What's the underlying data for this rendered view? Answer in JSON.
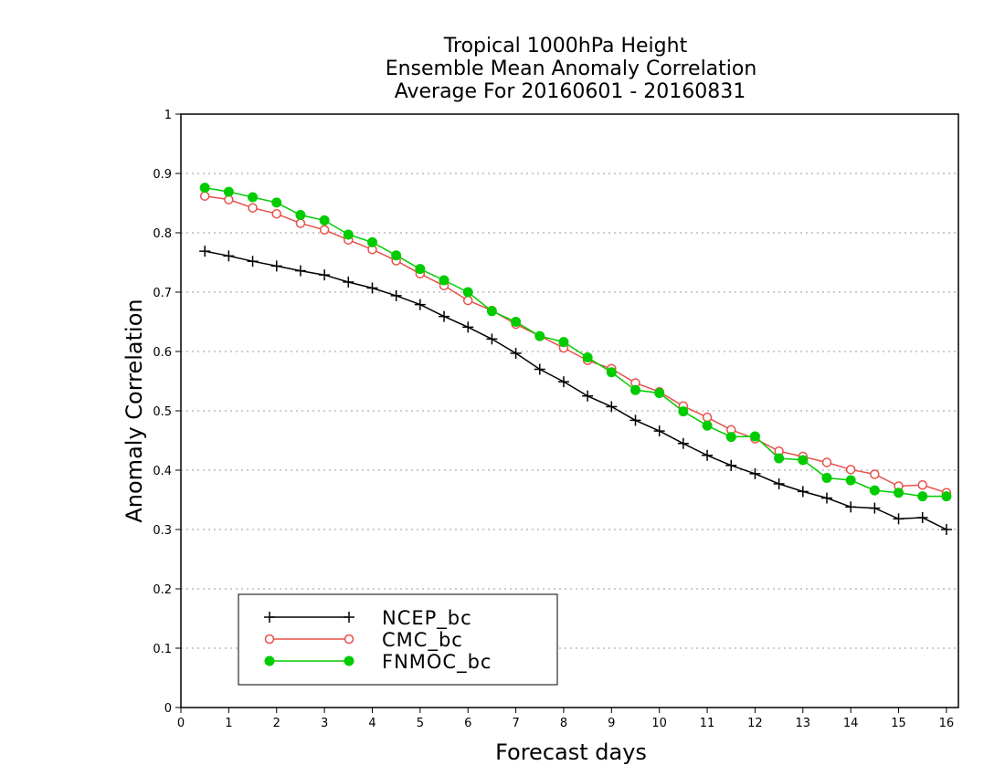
{
  "chart_data": {
    "type": "line",
    "title": [
      "Tropical 1000hPa Height",
      "Ensemble Mean Anomaly Correlation",
      "Average For 20160601 - 20160831"
    ],
    "xlabel": "Forecast days",
    "ylabel": "Anomaly Correlation",
    "xlim": [
      0,
      16.25
    ],
    "ylim": [
      0,
      1
    ],
    "x_ticks": [
      0,
      1,
      2,
      3,
      4,
      5,
      6,
      7,
      8,
      9,
      10,
      11,
      12,
      13,
      14,
      15,
      16
    ],
    "y_ticks": [
      0,
      0.1,
      0.2,
      0.3,
      0.4,
      0.5,
      0.6,
      0.7,
      0.8,
      0.9,
      1
    ],
    "y_tick_labels": [
      "0",
      "0.1",
      "0.2",
      "0.3",
      "0.4",
      "0.5",
      "0.6",
      "0.7",
      "0.8",
      "0.9",
      "1"
    ],
    "grid": "horizontal dotted",
    "legend_position": "bottom-left",
    "x": [
      0.5,
      1,
      1.5,
      2,
      2.5,
      3,
      3.5,
      4,
      4.5,
      5,
      5.5,
      6,
      6.5,
      7,
      7.5,
      8,
      8.5,
      9,
      9.5,
      10,
      10.5,
      11,
      11.5,
      12,
      12.5,
      13,
      13.5,
      14,
      14.5,
      15,
      15.5,
      16
    ],
    "series": [
      {
        "name": "NCEP_bc",
        "color": "#000000",
        "marker": "plus",
        "values": [
          0.769,
          0.761,
          0.752,
          0.744,
          0.736,
          0.729,
          0.717,
          0.707,
          0.694,
          0.679,
          0.659,
          0.641,
          0.621,
          0.597,
          0.57,
          0.549,
          0.525,
          0.507,
          0.484,
          0.466,
          0.445,
          0.425,
          0.408,
          0.394,
          0.377,
          0.364,
          0.353,
          0.338,
          0.336,
          0.318,
          0.32,
          0.3
        ]
      },
      {
        "name": "CMC_bc",
        "color": "#e8504a",
        "marker": "open-circle",
        "values": [
          0.862,
          0.856,
          0.842,
          0.832,
          0.816,
          0.805,
          0.788,
          0.772,
          0.753,
          0.731,
          0.711,
          0.686,
          0.669,
          0.646,
          0.626,
          0.606,
          0.585,
          0.571,
          0.547,
          0.532,
          0.508,
          0.489,
          0.468,
          0.453,
          0.432,
          0.423,
          0.413,
          0.401,
          0.393,
          0.373,
          0.375,
          0.362
        ]
      },
      {
        "name": "FNMOC_bc",
        "color": "#00cc00",
        "marker": "filled-circle",
        "values": [
          0.876,
          0.869,
          0.86,
          0.851,
          0.83,
          0.821,
          0.797,
          0.784,
          0.762,
          0.739,
          0.72,
          0.7,
          0.668,
          0.65,
          0.626,
          0.616,
          0.59,
          0.565,
          0.535,
          0.53,
          0.499,
          0.475,
          0.456,
          0.457,
          0.42,
          0.417,
          0.387,
          0.383,
          0.366,
          0.362,
          0.356,
          0.356
        ]
      }
    ]
  }
}
